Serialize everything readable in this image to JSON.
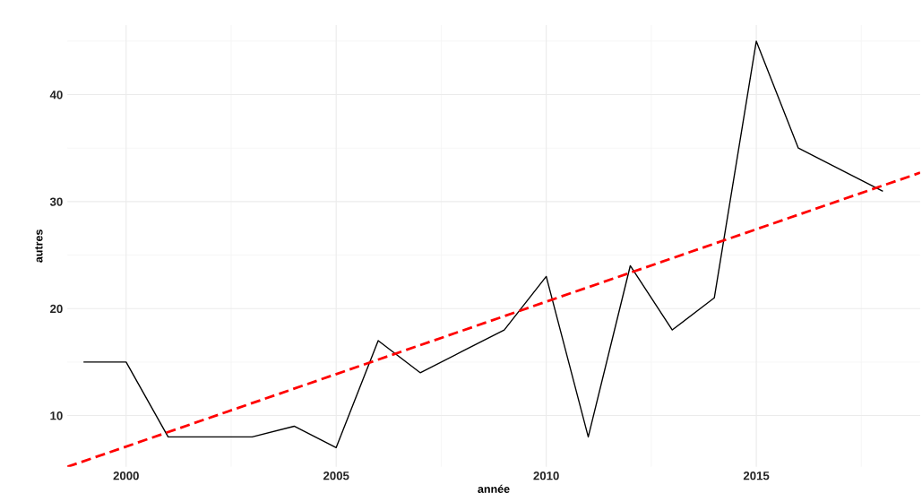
{
  "chart_data": {
    "type": "line",
    "xlabel": "année",
    "ylabel": "autres",
    "x": [
      1999,
      2000,
      2001,
      2002,
      2003,
      2004,
      2005,
      2006,
      2007,
      2008,
      2009,
      2010,
      2011,
      2012,
      2013,
      2014,
      2015,
      2016,
      2017,
      2018
    ],
    "series": [
      {
        "color": "#000000",
        "values": [
          15,
          15,
          8,
          8,
          8,
          9,
          7,
          17,
          14,
          16,
          18,
          23,
          8,
          24,
          18,
          21,
          45,
          35,
          33,
          31
        ],
        "line_style": "solid"
      },
      {
        "color": "#ff0000",
        "x": [
          1998.6,
          2018.9
        ],
        "values": [
          5.2,
          32.7
        ],
        "line_style": "dashed"
      }
    ],
    "xlim": [
      1998.6,
      2018.9
    ],
    "ylim": [
      5.2,
      46.5
    ],
    "xticks": [
      2000,
      2005,
      2010,
      2015
    ],
    "yticks": [
      10,
      20,
      30,
      40
    ],
    "grid": true,
    "legend": false,
    "marker": "none"
  }
}
